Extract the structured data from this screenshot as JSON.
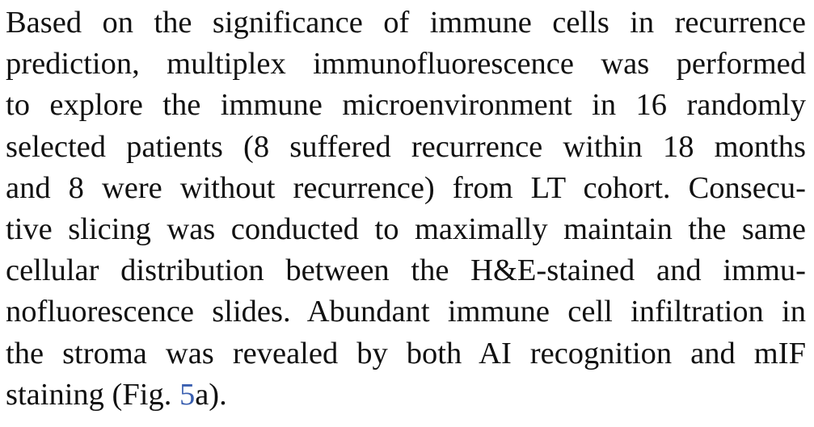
{
  "paragraph": {
    "lines": [
      "Based on the significance of immune cells in recurrence",
      "prediction, multiplex immunofluorescence was performed",
      "to explore the immune microenvironment in 16 randomly",
      "selected patients (8 suffered recurrence within 18 months",
      "and 8 were without recurrence) from LT cohort. Consecu-",
      "tive slicing was conducted to maximally maintain the same",
      "cellular distribution between the H&E-stained and immu-",
      "nofluorescence slides. Abundant immune cell infiltration in",
      "the stroma was revealed by both AI recognition and mIF"
    ],
    "last_line": {
      "before": "staining (Fig. ",
      "link": "5",
      "after": "a)."
    }
  },
  "colors": {
    "text": "#111111",
    "link": "#3a5fb0"
  }
}
